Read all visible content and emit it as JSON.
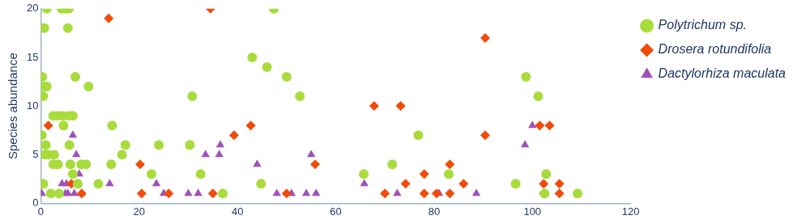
{
  "chart_data": {
    "type": "scatter",
    "y_label": "Species abundance",
    "xlim": [
      0,
      120
    ],
    "xticks": [
      0,
      20,
      40,
      60,
      80,
      100,
      120
    ],
    "ylim": [
      0,
      20
    ],
    "yticks": [
      0,
      5,
      10,
      15,
      20
    ],
    "grid": false,
    "legend": "right",
    "series": [
      {
        "name": "Polytrichum sp.",
        "color": "#a8dc3c",
        "marker": "circle",
        "x": [
          1.2,
          4.2,
          5,
          5.7,
          47.4,
          0.7,
          5.5,
          0.3,
          0.7,
          1.2,
          0.5,
          7,
          9.7,
          2.5,
          3.5,
          4.5,
          5.7,
          6.5,
          4.6,
          14.5,
          0.2,
          1,
          5.8,
          17.2,
          24,
          30.3,
          0.8,
          2.7,
          3.5,
          2.5,
          1.5,
          16.5,
          8.2,
          9.2,
          6,
          6.5,
          7.5,
          0.5,
          11.7,
          22.5,
          32.5,
          30.8,
          43,
          46,
          50,
          52.7,
          44.8,
          37,
          2,
          3.7,
          65.7,
          71.5,
          76.8,
          83,
          96.6,
          98.7,
          101.2,
          102.8,
          102.5,
          109.2,
          14.3
        ],
        "values": [
          20,
          20,
          20,
          20,
          20,
          18,
          18,
          13,
          12,
          12,
          11,
          13,
          12,
          9,
          9,
          9,
          9,
          9,
          8,
          8,
          7,
          6,
          6,
          6,
          6,
          6,
          5,
          5,
          4,
          4,
          5,
          5,
          4,
          4,
          4,
          3,
          2,
          2,
          2,
          3,
          3,
          11,
          15,
          14,
          13,
          11,
          2,
          1,
          1,
          1,
          3,
          4,
          7,
          3,
          2,
          13,
          11,
          3,
          1,
          1,
          4
        ]
      },
      {
        "name": "Drosera rotundifolia",
        "color": "#f24a0a",
        "marker": "diamond",
        "x": [
          1.5,
          13.8,
          34.5,
          90.4,
          42.7,
          39.3,
          20.2,
          20.5,
          26,
          35,
          50,
          55.8,
          67.8,
          73.2,
          74.2,
          70,
          78,
          78,
          86,
          83.2,
          83.2,
          90.4,
          101.5,
          103.5,
          102.3,
          102.3,
          105.5,
          105.5,
          6.2,
          8.3,
          80.5
        ],
        "values": [
          8,
          19,
          20,
          17,
          8,
          7,
          4,
          1,
          1,
          1,
          1,
          4,
          10,
          10,
          2,
          1,
          3,
          1,
          2,
          4,
          1,
          7,
          8,
          8,
          2,
          1,
          2,
          1,
          2,
          1,
          1
        ]
      },
      {
        "name": "Dactylorhiza maculata",
        "color": "#a052b8",
        "marker": "triangle",
        "x": [
          0.2,
          4.3,
          5,
          5.5,
          6.5,
          7.2,
          7.8,
          8.3,
          6.8,
          5.2,
          14,
          23.5,
          25,
          30,
          32,
          33.5,
          32.5,
          36.5,
          36.3,
          44,
          48,
          51,
          54,
          55,
          56,
          65.8,
          72.5,
          81,
          88.6,
          98.5,
          100
        ],
        "values": [
          1,
          2,
          1,
          1,
          7,
          5,
          3,
          1,
          1,
          2,
          2,
          2,
          1,
          1,
          1,
          5,
          3,
          6,
          5,
          4,
          1,
          1,
          1,
          5,
          1,
          2,
          1,
          1,
          1,
          6,
          8
        ]
      }
    ]
  }
}
